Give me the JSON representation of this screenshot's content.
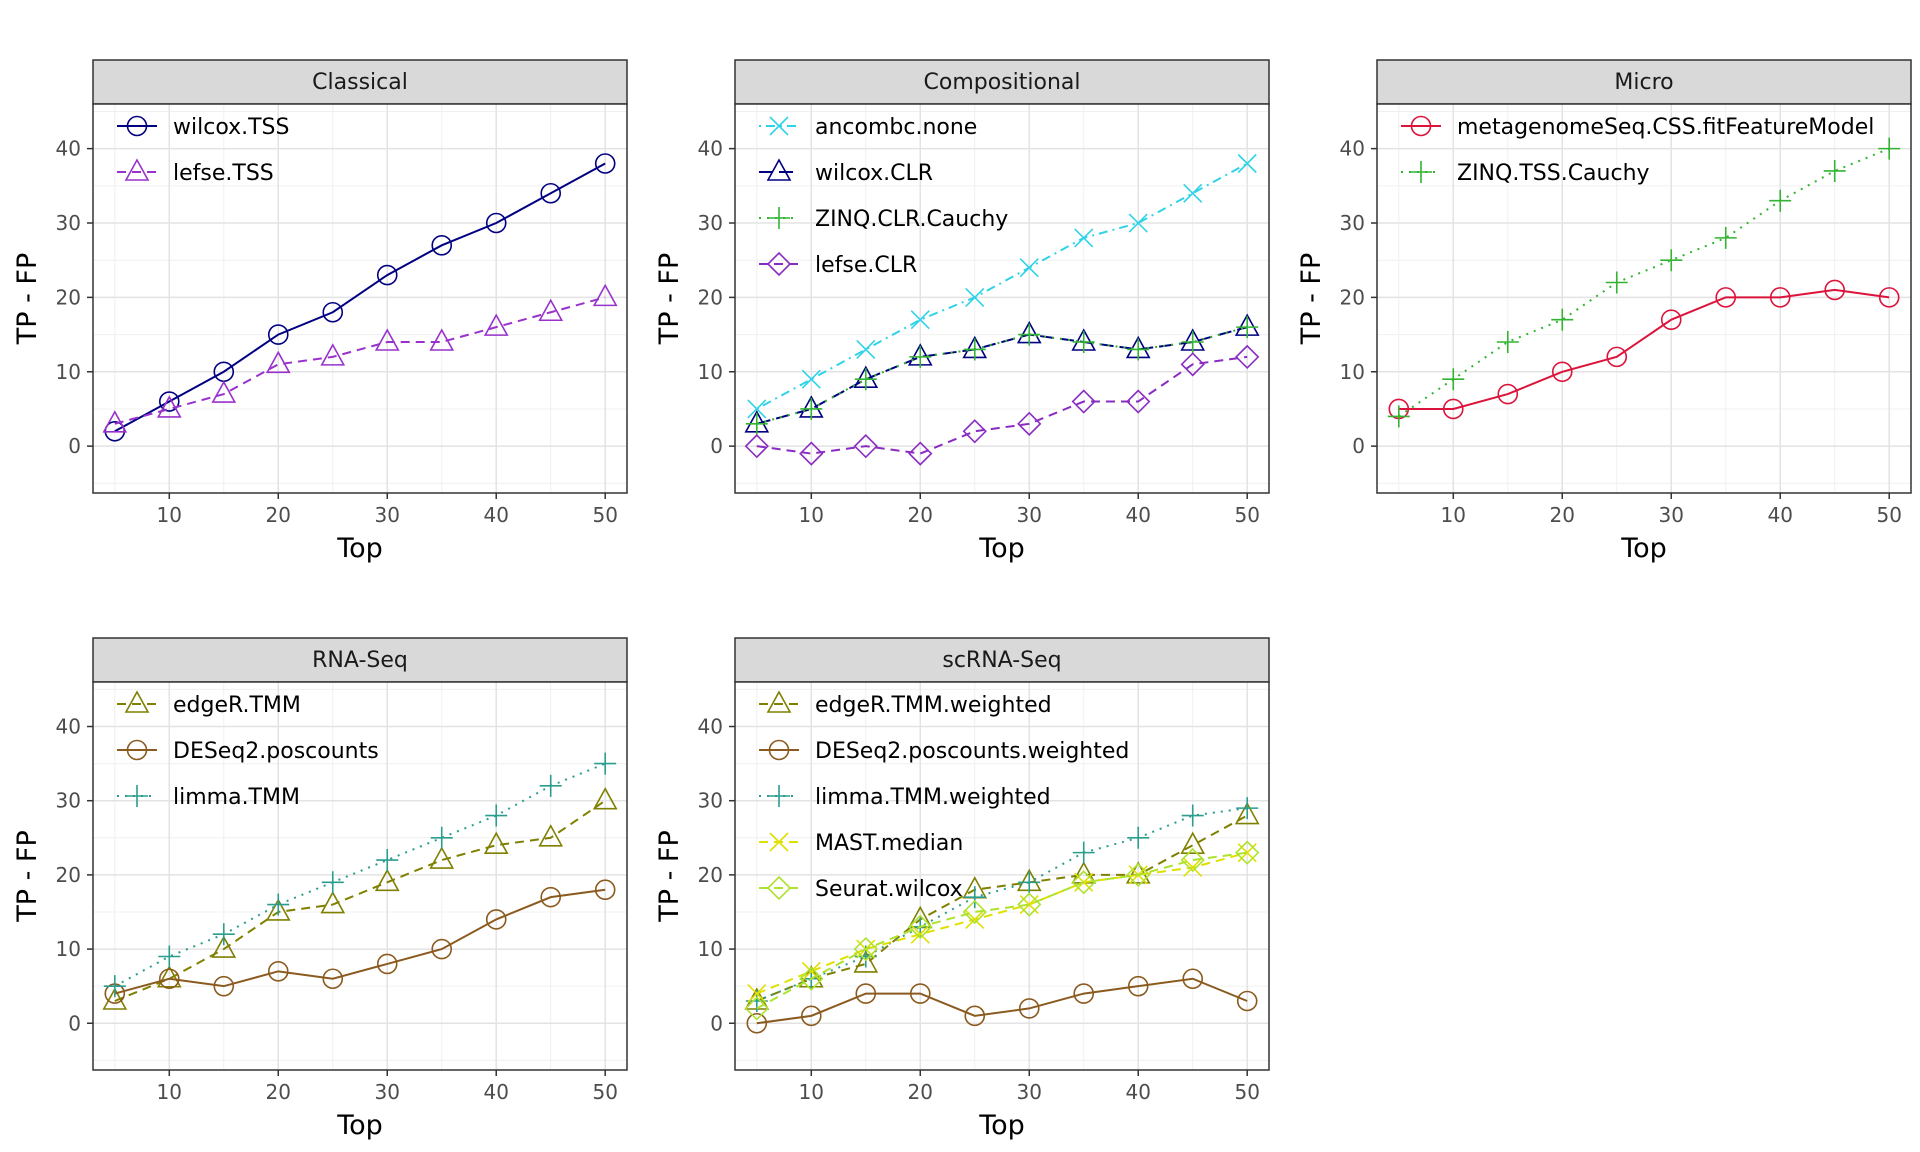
{
  "chart_data": [
    {
      "type": "line",
      "title": "Classical",
      "xlabel": "Top",
      "ylabel": "TP - FP",
      "xlim": [
        3,
        52
      ],
      "ylim": [
        -6.3,
        46
      ],
      "xticks": [
        10,
        20,
        30,
        40,
        50
      ],
      "yticks": [
        0,
        10,
        20,
        30,
        40
      ],
      "grid": true,
      "legend_position": "top-left",
      "x": [
        5,
        10,
        15,
        20,
        25,
        30,
        35,
        40,
        45,
        50
      ],
      "series": [
        {
          "name": "wilcox.TSS",
          "values": [
            2,
            6,
            10,
            15,
            18,
            23,
            27,
            30,
            34,
            38
          ],
          "color": "#000080",
          "marker": "circle",
          "dash": "solid"
        },
        {
          "name": "lefse.TSS",
          "values": [
            3,
            5,
            7,
            11,
            12,
            14,
            14,
            16,
            18,
            20
          ],
          "color": "#9932CC",
          "marker": "triangle",
          "dash": "dashed"
        }
      ]
    },
    {
      "type": "line",
      "title": "Compositional",
      "xlabel": "Top",
      "ylabel": "TP - FP",
      "xlim": [
        3,
        52
      ],
      "ylim": [
        -6.3,
        46
      ],
      "xticks": [
        10,
        20,
        30,
        40,
        50
      ],
      "yticks": [
        0,
        10,
        20,
        30,
        40
      ],
      "grid": true,
      "legend_position": "top-left",
      "x": [
        5,
        10,
        15,
        20,
        25,
        30,
        35,
        40,
        45,
        50
      ],
      "series": [
        {
          "name": "ancombc.none",
          "values": [
            5,
            9,
            13,
            17,
            20,
            24,
            28,
            30,
            34,
            38
          ],
          "color": "#2FD3E8",
          "marker": "x",
          "dash": "dotdash"
        },
        {
          "name": "wilcox.CLR",
          "values": [
            3,
            5,
            9,
            12,
            13,
            15,
            14,
            13,
            14,
            16
          ],
          "color": "#000080",
          "marker": "triangle",
          "dash": "longdash"
        },
        {
          "name": "ZINQ.CLR.Cauchy",
          "values": [
            3,
            5,
            9,
            12,
            13,
            15,
            14,
            13,
            14,
            16
          ],
          "color": "#32B432",
          "marker": "plus",
          "dash": "dotted"
        },
        {
          "name": "lefse.CLR",
          "values": [
            0,
            -1,
            0,
            -1,
            2,
            3,
            6,
            6,
            11,
            12
          ],
          "color": "#8A2BC2",
          "marker": "diamond",
          "dash": "dashed"
        }
      ]
    },
    {
      "type": "line",
      "title": "Micro",
      "xlabel": "Top",
      "ylabel": "TP - FP",
      "xlim": [
        3,
        52
      ],
      "ylim": [
        -6.3,
        46
      ],
      "xticks": [
        10,
        20,
        30,
        40,
        50
      ],
      "yticks": [
        0,
        10,
        20,
        30,
        40
      ],
      "grid": true,
      "legend_position": "top-left",
      "x": [
        5,
        10,
        15,
        20,
        25,
        30,
        35,
        40,
        45,
        50
      ],
      "series": [
        {
          "name": "metagenomeSeq.CSS.fitFeatureModel",
          "values": [
            5,
            5,
            7,
            10,
            12,
            17,
            20,
            20,
            21,
            20
          ],
          "color": "#DC143C",
          "marker": "circle",
          "dash": "solid"
        },
        {
          "name": "ZINQ.TSS.Cauchy",
          "values": [
            4,
            9,
            14,
            17,
            22,
            25,
            28,
            33,
            37,
            40
          ],
          "color": "#32B432",
          "marker": "plus",
          "dash": "dotted"
        }
      ]
    },
    {
      "type": "line",
      "title": "RNA-Seq",
      "xlabel": "Top",
      "ylabel": "TP - FP",
      "xlim": [
        3,
        52
      ],
      "ylim": [
        -6.3,
        46
      ],
      "xticks": [
        10,
        20,
        30,
        40,
        50
      ],
      "yticks": [
        0,
        10,
        20,
        30,
        40
      ],
      "grid": true,
      "legend_position": "top-left",
      "x": [
        5,
        10,
        15,
        20,
        25,
        30,
        35,
        40,
        45,
        50
      ],
      "series": [
        {
          "name": "edgeR.TMM",
          "values": [
            3,
            6,
            10,
            15,
            16,
            19,
            22,
            24,
            25,
            30
          ],
          "color": "#808000",
          "marker": "triangle",
          "dash": "dashed"
        },
        {
          "name": "DESeq2.poscounts",
          "values": [
            4,
            6,
            5,
            7,
            6,
            8,
            10,
            14,
            17,
            18
          ],
          "color": "#8B5A1E",
          "marker": "circle",
          "dash": "solid"
        },
        {
          "name": "limma.TMM",
          "values": [
            5,
            9,
            12,
            16,
            19,
            22,
            25,
            28,
            32,
            35
          ],
          "color": "#2A9D8F",
          "marker": "plus",
          "dash": "dotted"
        }
      ]
    },
    {
      "type": "line",
      "title": "scRNA-Seq",
      "xlabel": "Top",
      "ylabel": "TP - FP",
      "xlim": [
        3,
        52
      ],
      "ylim": [
        -6.3,
        46
      ],
      "xticks": [
        10,
        20,
        30,
        40,
        50
      ],
      "yticks": [
        0,
        10,
        20,
        30,
        40
      ],
      "grid": true,
      "legend_position": "top-left",
      "x": [
        5,
        10,
        15,
        20,
        25,
        30,
        35,
        40,
        45,
        50
      ],
      "series": [
        {
          "name": "edgeR.TMM.weighted",
          "values": [
            3,
            6,
            8,
            14,
            18,
            19,
            20,
            20,
            24,
            28
          ],
          "color": "#808000",
          "marker": "triangle",
          "dash": "dashed"
        },
        {
          "name": "DESeq2.poscounts.weighted",
          "values": [
            0,
            1,
            4,
            4,
            1,
            2,
            4,
            5,
            6,
            3
          ],
          "color": "#8B5A1E",
          "marker": "circle",
          "dash": "solid"
        },
        {
          "name": "limma.TMM.weighted",
          "values": [
            3,
            6,
            9,
            13,
            17,
            19,
            23,
            25,
            28,
            29
          ],
          "color": "#2A9D8F",
          "marker": "plus",
          "dash": "dotted"
        },
        {
          "name": "MAST.median",
          "values": [
            4,
            7,
            10,
            12,
            14,
            16,
            19,
            20,
            21,
            23
          ],
          "color": "#E0E000",
          "marker": "x",
          "dash": "dashed"
        },
        {
          "name": "Seurat.wilcox",
          "values": [
            2,
            6,
            10,
            13,
            15,
            16,
            19,
            20,
            22,
            23
          ],
          "color": "#ADE22E",
          "marker": "diamond",
          "dash": "dashed"
        }
      ]
    }
  ]
}
